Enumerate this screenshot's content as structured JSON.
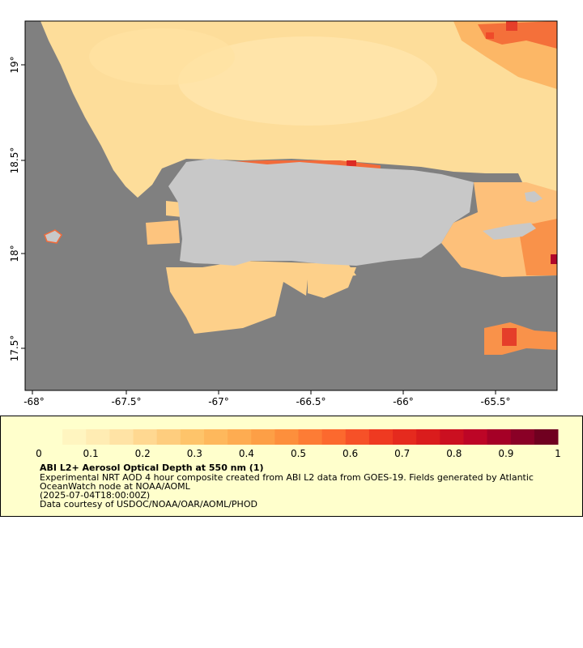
{
  "map": {
    "lon_ticks": [
      "-68°",
      "-67.5°",
      "-67°",
      "-66.5°",
      "-66°",
      "-65.5°"
    ],
    "lat_ticks": [
      "19°",
      "18.5°",
      "18°",
      "17.5°"
    ],
    "colors": {
      "land": "#c8c8c8",
      "nodata": "#808080",
      "frame": "#000000"
    }
  },
  "colorbar": {
    "tick_labels": [
      "0",
      "0.1",
      "0.2",
      "0.3",
      "0.4",
      "0.5",
      "0.6",
      "0.7",
      "0.8",
      "0.9",
      "1"
    ],
    "range": [
      0,
      1
    ],
    "colors": [
      "#ffffcc",
      "#fff5c0",
      "#ffecb3",
      "#ffe3a5",
      "#ffd891",
      "#fecd7e",
      "#fec46a",
      "#feb85c",
      "#feac51",
      "#fd9f46",
      "#fd8f3c",
      "#fd7c35",
      "#fc692e",
      "#f65128",
      "#ef3a21",
      "#e52a1e",
      "#da1c1c",
      "#cb0f20",
      "#bd0526",
      "#a50026",
      "#8a0026",
      "#700020"
    ]
  },
  "legend": {
    "title": "ABI L2+ Aerosol Optical Depth at 550 nm (1)",
    "line1": "Experimental NRT AOD 4 hour composite created from ABI L2 data from GOES-19. Fields generated by Atlantic",
    "line2": "OceanWatch node at NOAA/AOML",
    "line3": "(2025-07-04T18:00:00Z)",
    "line4": "Data courtesy of USDOC/NOAA/OAR/AOML/PHOD"
  }
}
